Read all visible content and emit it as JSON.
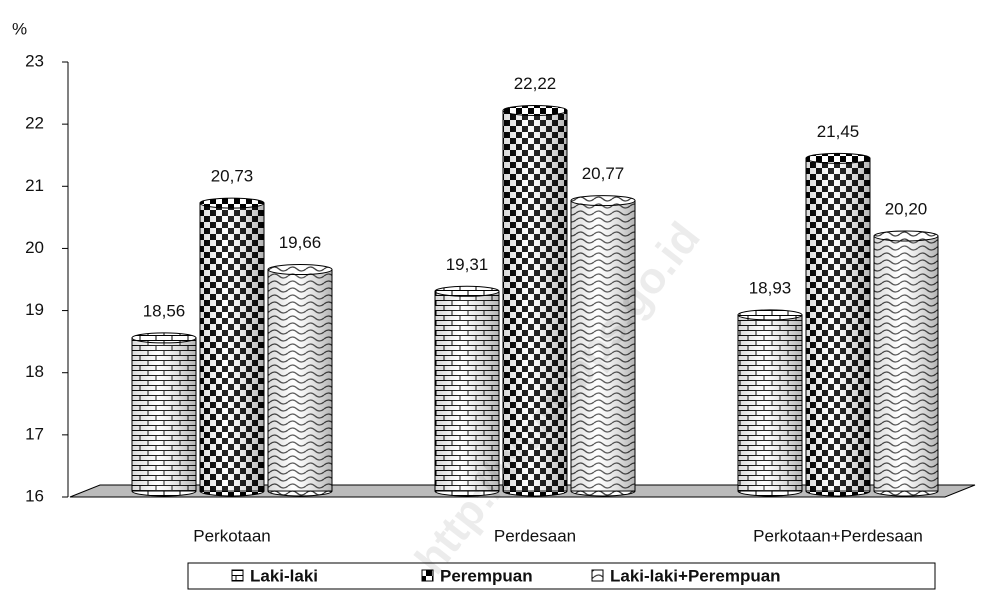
{
  "chart_data": {
    "type": "bar",
    "y_axis_label": "%",
    "categories": [
      "Perkotaan",
      "Perdesaan",
      "Perkotaan+Perdesaan"
    ],
    "series": [
      {
        "name": "Laki-laki",
        "color": "#000000",
        "values": [
          18.56,
          19.31,
          18.93
        ],
        "value_labels": [
          "18,56",
          "19,31",
          "18,93"
        ]
      },
      {
        "name": "Perempuan",
        "color": "#000000",
        "values": [
          20.73,
          22.22,
          21.45
        ],
        "value_labels": [
          "20,73",
          "22,22",
          "21,45"
        ]
      },
      {
        "name": "Laki-laki+Perempuan",
        "color": "#000000",
        "values": [
          19.66,
          20.77,
          20.2
        ],
        "value_labels": [
          "19,66",
          "20,77",
          "20,20"
        ]
      }
    ],
    "ylim": [
      16,
      23
    ],
    "yticks": [
      16,
      17,
      18,
      19,
      20,
      21,
      22,
      23
    ],
    "legend": "bottom",
    "watermark": "http://www.bps.go.id"
  }
}
